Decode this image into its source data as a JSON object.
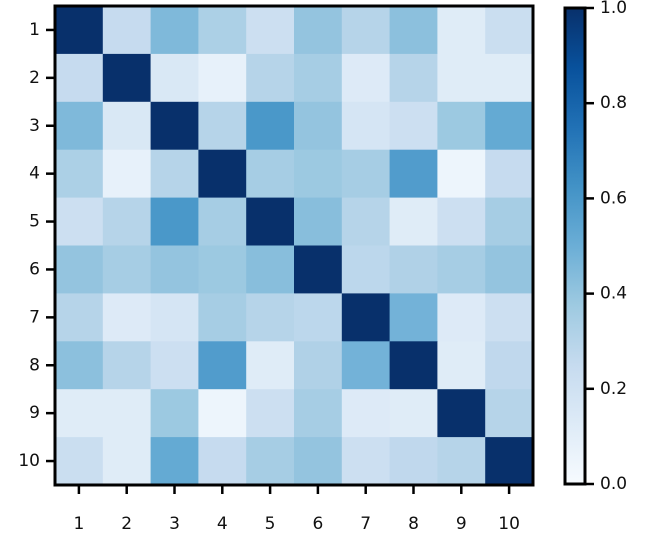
{
  "chart_data": {
    "type": "heatmap",
    "x_categories": [
      "1",
      "2",
      "3",
      "4",
      "5",
      "6",
      "7",
      "8",
      "9",
      "10"
    ],
    "y_categories": [
      "1",
      "2",
      "3",
      "4",
      "5",
      "6",
      "7",
      "8",
      "9",
      "10"
    ],
    "values": [
      [
        1,
        0.25,
        0.45,
        0.33,
        0.22,
        0.4,
        0.3,
        0.42,
        0.12,
        0.23
      ],
      [
        0.25,
        1,
        0.15,
        0.08,
        0.3,
        0.35,
        0.13,
        0.3,
        0.12,
        0.12
      ],
      [
        0.45,
        0.15,
        1,
        0.3,
        0.6,
        0.4,
        0.17,
        0.22,
        0.38,
        0.52
      ],
      [
        0.33,
        0.08,
        0.3,
        1,
        0.35,
        0.38,
        0.35,
        0.58,
        0.05,
        0.25
      ],
      [
        0.22,
        0.3,
        0.6,
        0.35,
        1,
        0.43,
        0.3,
        0.12,
        0.22,
        0.35
      ],
      [
        0.4,
        0.35,
        0.4,
        0.38,
        0.43,
        1,
        0.28,
        0.32,
        0.35,
        0.4
      ],
      [
        0.3,
        0.13,
        0.17,
        0.35,
        0.3,
        0.28,
        1,
        0.48,
        0.13,
        0.22
      ],
      [
        0.42,
        0.3,
        0.22,
        0.58,
        0.12,
        0.32,
        0.48,
        1,
        0.12,
        0.27
      ],
      [
        0.12,
        0.12,
        0.38,
        0.05,
        0.22,
        0.35,
        0.13,
        0.12,
        1,
        0.3
      ],
      [
        0.23,
        0.12,
        0.52,
        0.25,
        0.35,
        0.4,
        0.22,
        0.27,
        0.3,
        1
      ]
    ],
    "colormap": "Blues",
    "clim": [
      0,
      1
    ],
    "colorbar_ticks": [
      {
        "value": 0,
        "label": "0.0"
      },
      {
        "value": 0.2,
        "label": "0.2"
      },
      {
        "value": 0.4,
        "label": "0.4"
      },
      {
        "value": 0.6,
        "label": "0.6"
      },
      {
        "value": 0.8,
        "label": "0.8"
      },
      {
        "value": 1,
        "label": "1.0"
      }
    ]
  }
}
